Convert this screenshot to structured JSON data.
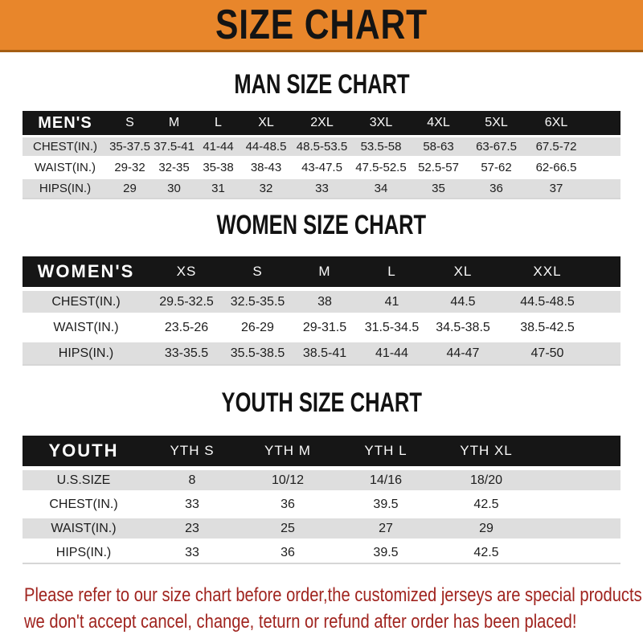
{
  "banner": {
    "title": "SIZE CHART"
  },
  "colors": {
    "accent_orange": "#E8862B",
    "header_black": "#161616",
    "row_gray": "#DEDEDE",
    "footer_red": "#A0241F"
  },
  "sections": [
    {
      "heading": "MAN SIZE CHART",
      "table": {
        "label": "MEN'S",
        "columns": [
          "S",
          "M",
          "L",
          "XL",
          "2XL",
          "3XL",
          "4XL",
          "5XL",
          "6XL"
        ],
        "rows": [
          {
            "label": "CHEST(IN.)",
            "values": [
              "35-37.5",
              "37.5-41",
              "41-44",
              "44-48.5",
              "48.5-53.5",
              "53.5-58",
              "58-63",
              "63-67.5",
              "67.5-72"
            ]
          },
          {
            "label": "WAIST(IN.)",
            "values": [
              "29-32",
              "32-35",
              "35-38",
              "38-43",
              "43-47.5",
              "47.5-52.5",
              "52.5-57",
              "57-62",
              "62-66.5"
            ]
          },
          {
            "label": "HIPS(IN.)",
            "values": [
              "29",
              "30",
              "31",
              "32",
              "33",
              "34",
              "35",
              "36",
              "37"
            ]
          }
        ]
      }
    },
    {
      "heading": "WOMEN SIZE CHART",
      "table": {
        "label": "WOMEN'S",
        "columns": [
          "XS",
          "S",
          "M",
          "L",
          "XL",
          "XXL"
        ],
        "rows": [
          {
            "label": "CHEST(IN.)",
            "values": [
              "29.5-32.5",
              "32.5-35.5",
              "38",
              "41",
              "44.5",
              "44.5-48.5"
            ]
          },
          {
            "label": "WAIST(IN.)",
            "values": [
              "23.5-26",
              "26-29",
              "29-31.5",
              "31.5-34.5",
              "34.5-38.5",
              "38.5-42.5"
            ]
          },
          {
            "label": "HIPS(IN.)",
            "values": [
              "33-35.5",
              "35.5-38.5",
              "38.5-41",
              "41-44",
              "44-47",
              "47-50"
            ]
          }
        ]
      }
    },
    {
      "heading": "YOUTH SIZE CHART",
      "table": {
        "label": "YOUTH",
        "columns": [
          "YTH S",
          "YTH M",
          "YTH L",
          "YTH XL"
        ],
        "rows": [
          {
            "label": "U.S.SIZE",
            "values": [
              "8",
              "10/12",
              "14/16",
              "18/20"
            ]
          },
          {
            "label": "CHEST(IN.)",
            "values": [
              "33",
              "36",
              "39.5",
              "42.5"
            ]
          },
          {
            "label": "WAIST(IN.)",
            "values": [
              "23",
              "25",
              "27",
              "29"
            ]
          },
          {
            "label": "HIPS(IN.)",
            "values": [
              "33",
              "36",
              "39.5",
              "42.5"
            ]
          }
        ]
      }
    }
  ],
  "footer": {
    "lines": [
      "Please refer to our size chart before order,the customized jerseys are special products,",
      "we don't accept cancel, change, teturn or refund after order has been placed!"
    ]
  }
}
